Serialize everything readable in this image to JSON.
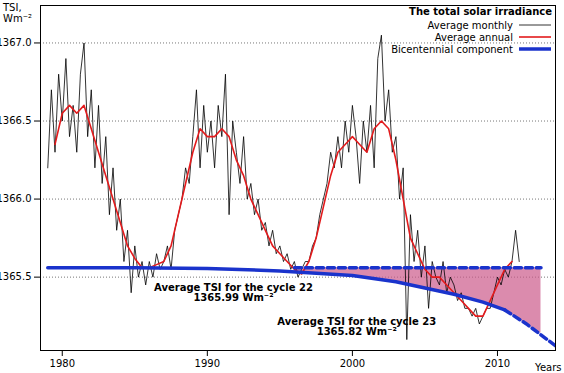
{
  "chart_data": {
    "type": "line",
    "ylabel": "TSI,\nWm⁻²",
    "xlabel": "Years",
    "legend_title": "The total solar irradiance",
    "legend": "top-right",
    "grid": true,
    "xlim": [
      1978.5,
      2014
    ],
    "xticks": [
      1980,
      1990,
      2000,
      2010
    ],
    "ylim": [
      1365.03,
      1367.24
    ],
    "yticks": [
      {
        "value": 1365.5,
        "label": "1365.5"
      },
      {
        "value": 1366,
        "label": "1366.0"
      },
      {
        "value": 1366.5,
        "label": "1366.5"
      },
      {
        "value": 1367,
        "label": "1367.0"
      }
    ],
    "series": [
      {
        "name": "Average monthly",
        "color": "#000000",
        "line_style": "solid",
        "x": [
          1979,
          1979.25,
          1979.5,
          1979.75,
          1980,
          1980.25,
          1980.5,
          1980.75,
          1981,
          1981.25,
          1981.5,
          1981.75,
          1982,
          1982.25,
          1982.5,
          1982.75,
          1983,
          1983.25,
          1983.5,
          1983.75,
          1984,
          1984.25,
          1984.5,
          1984.75,
          1985,
          1985.25,
          1985.5,
          1985.75,
          1986,
          1986.25,
          1986.5,
          1986.75,
          1987,
          1987.25,
          1987.5,
          1987.75,
          1988,
          1988.25,
          1988.5,
          1988.75,
          1989,
          1989.25,
          1989.5,
          1989.75,
          1990,
          1990.25,
          1990.5,
          1990.75,
          1991,
          1991.25,
          1991.5,
          1991.75,
          1992,
          1992.25,
          1992.5,
          1992.75,
          1993,
          1993.25,
          1993.5,
          1993.75,
          1994,
          1994.25,
          1994.5,
          1994.75,
          1995,
          1995.25,
          1995.5,
          1995.75,
          1996,
          1996.25,
          1996.5,
          1996.75,
          1997,
          1997.25,
          1997.5,
          1997.75,
          1998,
          1998.25,
          1998.5,
          1998.75,
          1999,
          1999.25,
          1999.5,
          1999.75,
          2000,
          2000.25,
          2000.5,
          2000.75,
          2001,
          2001.25,
          2001.5,
          2001.75,
          2002,
          2002.25,
          2002.5,
          2002.75,
          2003,
          2003.25,
          2003.5,
          2003.75,
          2004,
          2004.25,
          2004.5,
          2004.75,
          2005,
          2005.25,
          2005.5,
          2005.75,
          2006,
          2006.25,
          2006.5,
          2006.75,
          2007,
          2007.25,
          2007.5,
          2007.75,
          2008,
          2008.25,
          2008.5,
          2008.75,
          2009,
          2009.25,
          2009.5,
          2009.75,
          2010,
          2010.25,
          2010.5,
          2010.75,
          2011,
          2011.25,
          2011.5
        ],
        "values": [
          1366.2,
          1366.7,
          1366.3,
          1366.8,
          1366.5,
          1366.9,
          1366.4,
          1366.6,
          1366.3,
          1366.8,
          1367.0,
          1366.4,
          1366.7,
          1366.2,
          1366.6,
          1366.1,
          1366.4,
          1365.9,
          1366.2,
          1365.8,
          1366.0,
          1365.6,
          1365.8,
          1365.4,
          1365.7,
          1365.5,
          1365.6,
          1365.45,
          1365.6,
          1365.5,
          1365.65,
          1365.55,
          1365.6,
          1365.7,
          1365.55,
          1365.8,
          1365.9,
          1366.0,
          1366.2,
          1366.1,
          1366.4,
          1366.7,
          1366.2,
          1366.6,
          1366.3,
          1366.5,
          1366.2,
          1366.6,
          1366.4,
          1366.8,
          1365.9,
          1366.5,
          1366.3,
          1366.1,
          1366.4,
          1366.0,
          1366.1,
          1365.9,
          1366.0,
          1365.8,
          1365.85,
          1365.7,
          1365.8,
          1365.65,
          1365.7,
          1365.6,
          1365.65,
          1365.55,
          1365.6,
          1365.5,
          1365.55,
          1365.6,
          1365.6,
          1365.7,
          1365.75,
          1365.9,
          1366.0,
          1366.1,
          1366.3,
          1366.2,
          1366.4,
          1366.2,
          1366.5,
          1366.3,
          1366.6,
          1366.4,
          1366.1,
          1366.5,
          1366.3,
          1366.6,
          1366.2,
          1366.9,
          1367.05,
          1366.5,
          1366.7,
          1366.3,
          1366.4,
          1366.0,
          1366.2,
          1365.1,
          1365.9,
          1365.6,
          1365.8,
          1365.5,
          1365.7,
          1365.3,
          1365.6,
          1365.5,
          1365.45,
          1365.6,
          1365.4,
          1365.5,
          1365.45,
          1365.35,
          1365.4,
          1365.3,
          1365.3,
          1365.25,
          1365.3,
          1365.2,
          1365.25,
          1365.3,
          1365.3,
          1365.4,
          1365.5,
          1365.45,
          1365.55,
          1365.5,
          1365.6,
          1365.8,
          1365.6
        ]
      },
      {
        "name": "Average annual",
        "color": "#e31a1c",
        "line_style": "solid",
        "x": [
          1979.5,
          1980,
          1980.5,
          1981,
          1981.5,
          1982,
          1982.5,
          1983,
          1983.5,
          1984,
          1984.5,
          1985,
          1985.5,
          1986,
          1986.5,
          1987,
          1987.5,
          1988,
          1988.5,
          1989,
          1989.5,
          1990,
          1990.5,
          1991,
          1991.5,
          1992,
          1992.5,
          1993,
          1993.5,
          1994,
          1994.5,
          1995,
          1995.5,
          1996,
          1996.5,
          1997,
          1997.5,
          1998,
          1998.5,
          1999,
          1999.5,
          2000,
          2000.5,
          2001,
          2001.5,
          2002,
          2002.5,
          2003,
          2003.5,
          2004,
          2004.5,
          2005,
          2005.5,
          2006,
          2006.5,
          2007,
          2007.5,
          2008,
          2008.5,
          2009,
          2009.5,
          2010,
          2010.5,
          2011
        ],
        "values": [
          1366.35,
          1366.55,
          1366.6,
          1366.55,
          1366.6,
          1366.45,
          1366.3,
          1366.15,
          1366.0,
          1365.85,
          1365.7,
          1365.62,
          1365.56,
          1365.56,
          1365.58,
          1365.6,
          1365.7,
          1365.9,
          1366.1,
          1366.3,
          1366.45,
          1366.4,
          1366.4,
          1366.45,
          1366.4,
          1366.25,
          1366.15,
          1366.0,
          1365.9,
          1365.8,
          1365.7,
          1365.65,
          1365.6,
          1365.55,
          1365.52,
          1365.6,
          1365.75,
          1365.95,
          1366.15,
          1366.3,
          1366.35,
          1366.4,
          1366.35,
          1366.3,
          1366.45,
          1366.5,
          1366.45,
          1366.25,
          1366.0,
          1365.75,
          1365.65,
          1365.55,
          1365.5,
          1365.5,
          1365.45,
          1365.4,
          1365.35,
          1365.3,
          1365.25,
          1365.25,
          1365.35,
          1365.45,
          1365.55,
          1365.6
        ]
      },
      {
        "name": "Bicentennial component",
        "color": "#1a33cc",
        "line_style": "solid",
        "x": [
          1979,
          1985,
          1990,
          1995,
          2000,
          2003,
          2005,
          2007,
          2009,
          2010.5
        ],
        "values": [
          1365.56,
          1365.56,
          1365.555,
          1365.54,
          1365.51,
          1365.47,
          1365.43,
          1365.39,
          1365.34,
          1365.29
        ]
      },
      {
        "name": "Bicentennial component",
        "color": "#1a33cc",
        "line_style": "dashed",
        "x": [
          2010.5,
          2012,
          2014
        ],
        "values": [
          1365.29,
          1365.2,
          1365.06
        ]
      },
      {
        "name": "Bicentennial component",
        "color": "#1a33cc",
        "line_style": "dashed",
        "x": [
          1996,
          2013
        ],
        "values": [
          1365.56,
          1365.56
        ]
      }
    ],
    "shading": {
      "color": "#cc5a8a",
      "x": [
        1996,
        1997,
        2000,
        2003,
        2005,
        2007,
        2009,
        2010.5,
        2012,
        2013
      ],
      "upper": [
        1365.56,
        1365.56,
        1365.56,
        1365.56,
        1365.56,
        1365.56,
        1365.56,
        1365.56,
        1365.56,
        1365.56
      ],
      "lower": [
        1365.53,
        1365.52,
        1365.51,
        1365.47,
        1365.43,
        1365.39,
        1365.34,
        1365.29,
        1365.2,
        1365.14
      ]
    },
    "annotations": [
      {
        "text": "Average TSI for the cycle 22\n1365.99 Wm⁻²",
        "x": 1991.8,
        "y": 1365.4
      },
      {
        "text": "Average TSI for the cycle 23\n1365.82 Wm⁻²",
        "x": 2000.3,
        "y": 1365.18
      }
    ]
  }
}
